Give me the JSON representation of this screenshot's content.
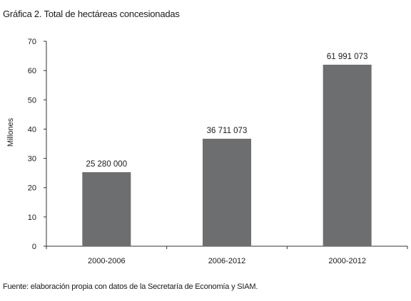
{
  "title": "Gráfica 2. Total de hectáreas concesionadas",
  "source": "Fuente: elaboración propia con datos de la Secretaría de Economía y SIAM.",
  "chart_data": {
    "type": "bar",
    "categories": [
      "2000-2006",
      "2006-2012",
      "2000-2012"
    ],
    "values": [
      25.28,
      36.711073,
      61.991073
    ],
    "data_labels": [
      "25 280 000",
      "36 711 073",
      "61 991 073"
    ],
    "ylabel": "Millones",
    "xlabel": "",
    "ylim": [
      0,
      70
    ],
    "yticks": [
      0,
      10,
      20,
      30,
      40,
      50,
      60,
      70
    ],
    "bar_color": "#6d6e70",
    "grid": false,
    "legend": "none"
  }
}
